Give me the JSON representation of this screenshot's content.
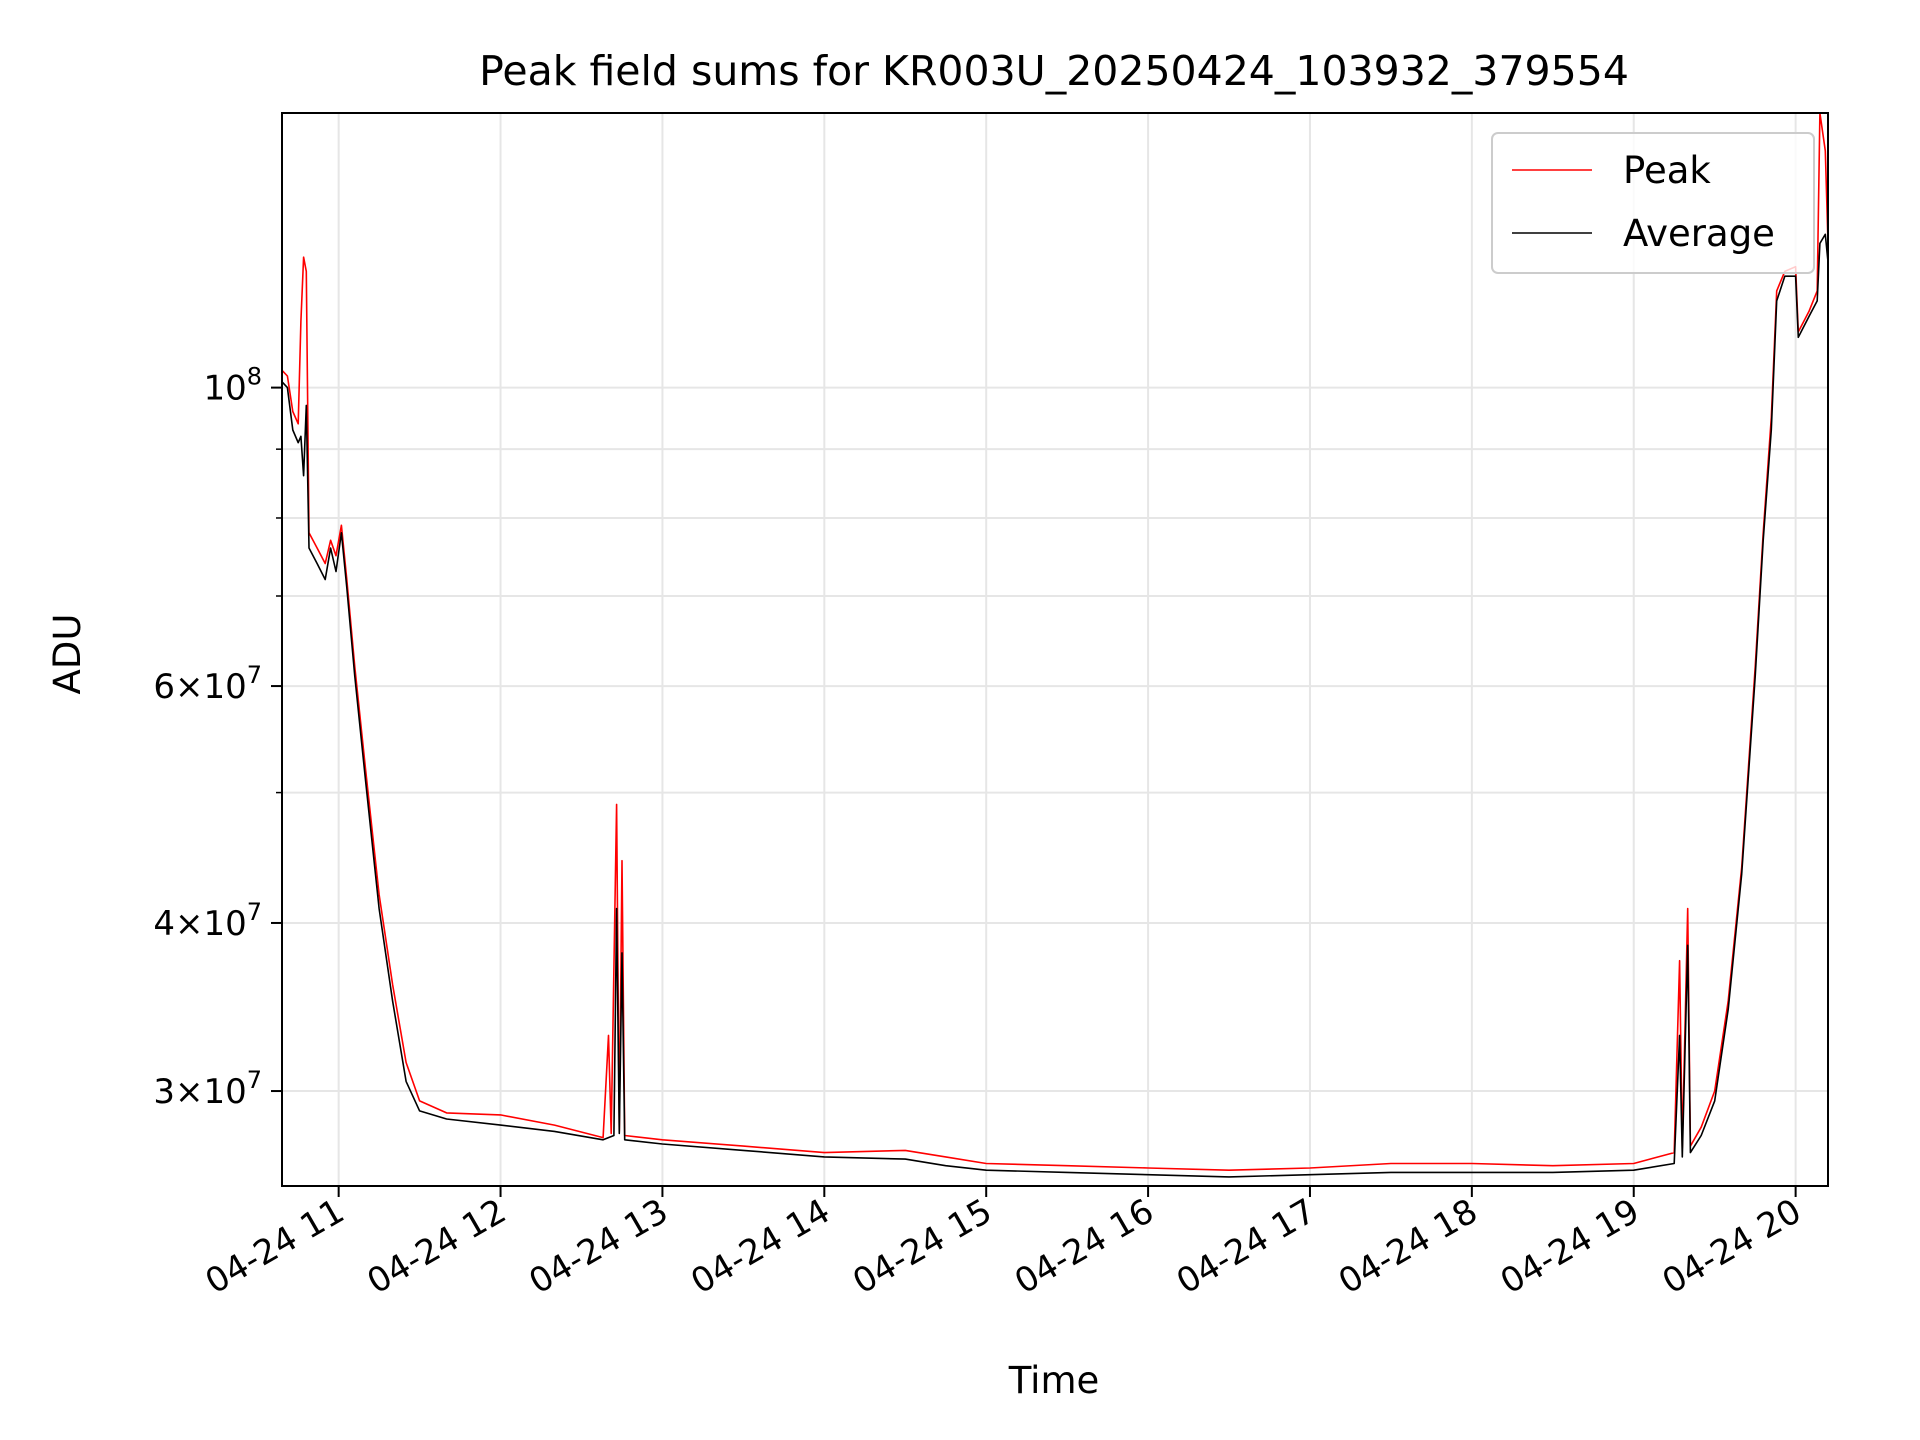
{
  "chart_data": {
    "type": "line",
    "title": "Peak field sums for KR003U_20250424_103932_379554",
    "xlabel": "Time",
    "ylabel": "ADU",
    "yscale": "log",
    "grid": true,
    "legend_placement": "top-right",
    "xlim": [
      "2025-04-24 10:39",
      "2025-04-24 20:12"
    ],
    "ylim": [
      25500000,
      160000000
    ],
    "x_ticks": [
      {
        "time": "2025-04-24 11:00",
        "label": "04-24 11"
      },
      {
        "time": "2025-04-24 12:00",
        "label": "04-24 12"
      },
      {
        "time": "2025-04-24 13:00",
        "label": "04-24 13"
      },
      {
        "time": "2025-04-24 14:00",
        "label": "04-24 14"
      },
      {
        "time": "2025-04-24 15:00",
        "label": "04-24 15"
      },
      {
        "time": "2025-04-24 16:00",
        "label": "04-24 16"
      },
      {
        "time": "2025-04-24 17:00",
        "label": "04-24 17"
      },
      {
        "time": "2025-04-24 18:00",
        "label": "04-24 18"
      },
      {
        "time": "2025-04-24 19:00",
        "label": "04-24 19"
      },
      {
        "time": "2025-04-24 20:00",
        "label": "04-24 20"
      }
    ],
    "y_ticks": [
      {
        "value": 100000000,
        "base": "10",
        "exp": "8"
      },
      {
        "value": 60000000,
        "mant": "6",
        "base": "10",
        "exp": "7"
      },
      {
        "value": 40000000,
        "mant": "4",
        "base": "10",
        "exp": "7"
      },
      {
        "value": 30000000,
        "mant": "3",
        "base": "10",
        "exp": "7"
      }
    ],
    "y_minor_grid": [
      20000000,
      50000000,
      70000000,
      80000000,
      90000000
    ],
    "series": [
      {
        "name": "Peak",
        "color": "#ff0000",
        "points": [
          [
            "2025-04-24 10:39",
            103000000
          ],
          [
            "2025-04-24 10:41",
            102000000
          ],
          [
            "2025-04-24 10:43",
            96000000
          ],
          [
            "2025-04-24 10:45",
            94000000
          ],
          [
            "2025-04-24 10:46",
            112000000
          ],
          [
            "2025-04-24 10:47",
            125000000
          ],
          [
            "2025-04-24 10:48",
            122000000
          ],
          [
            "2025-04-24 10:49",
            78000000
          ],
          [
            "2025-04-24 10:52",
            76000000
          ],
          [
            "2025-04-24 10:55",
            74000000
          ],
          [
            "2025-04-24 10:57",
            77000000
          ],
          [
            "2025-04-24 10:59",
            75000000
          ],
          [
            "2025-04-24 11:01",
            79000000
          ],
          [
            "2025-04-24 11:03",
            72000000
          ],
          [
            "2025-04-24 11:06",
            62000000
          ],
          [
            "2025-04-24 11:10",
            52000000
          ],
          [
            "2025-04-24 11:15",
            42000000
          ],
          [
            "2025-04-24 11:20",
            36000000
          ],
          [
            "2025-04-24 11:25",
            31500000
          ],
          [
            "2025-04-24 11:30",
            29500000
          ],
          [
            "2025-04-24 11:40",
            28900000
          ],
          [
            "2025-04-24 12:00",
            28800000
          ],
          [
            "2025-04-24 12:20",
            28300000
          ],
          [
            "2025-04-24 12:38",
            27700000
          ],
          [
            "2025-04-24 12:40",
            33000000
          ],
          [
            "2025-04-24 12:41",
            27900000
          ],
          [
            "2025-04-24 12:43",
            49000000
          ],
          [
            "2025-04-24 12:44",
            28000000
          ],
          [
            "2025-04-24 12:45",
            44500000
          ],
          [
            "2025-04-24 12:46",
            27800000
          ],
          [
            "2025-04-24 13:00",
            27600000
          ],
          [
            "2025-04-24 13:30",
            27300000
          ],
          [
            "2025-04-24 14:00",
            27000000
          ],
          [
            "2025-04-24 14:30",
            27100000
          ],
          [
            "2025-04-24 14:45",
            26800000
          ],
          [
            "2025-04-24 15:00",
            26500000
          ],
          [
            "2025-04-24 15:30",
            26400000
          ],
          [
            "2025-04-24 16:00",
            26300000
          ],
          [
            "2025-04-24 16:30",
            26200000
          ],
          [
            "2025-04-24 17:00",
            26300000
          ],
          [
            "2025-04-24 17:30",
            26500000
          ],
          [
            "2025-04-24 18:00",
            26500000
          ],
          [
            "2025-04-24 18:30",
            26400000
          ],
          [
            "2025-04-24 19:00",
            26500000
          ],
          [
            "2025-04-24 19:15",
            27000000
          ],
          [
            "2025-04-24 19:17",
            37500000
          ],
          [
            "2025-04-24 19:18",
            27200000
          ],
          [
            "2025-04-24 19:20",
            41000000
          ],
          [
            "2025-04-24 19:21",
            27300000
          ],
          [
            "2025-04-24 19:25",
            28200000
          ],
          [
            "2025-04-24 19:30",
            30000000
          ],
          [
            "2025-04-24 19:35",
            35000000
          ],
          [
            "2025-04-24 19:40",
            44000000
          ],
          [
            "2025-04-24 19:45",
            62000000
          ],
          [
            "2025-04-24 19:48",
            78000000
          ],
          [
            "2025-04-24 19:51",
            95000000
          ],
          [
            "2025-04-24 19:53",
            118000000
          ],
          [
            "2025-04-24 19:56",
            122000000
          ],
          [
            "2025-04-24 20:00",
            123000000
          ],
          [
            "2025-04-24 20:01",
            110000000
          ],
          [
            "2025-04-24 20:05",
            114000000
          ],
          [
            "2025-04-24 20:08",
            118000000
          ],
          [
            "2025-04-24 20:09",
            160000000
          ],
          [
            "2025-04-24 20:11",
            150000000
          ],
          [
            "2025-04-24 20:12",
            128000000
          ]
        ]
      },
      {
        "name": "Average",
        "color": "#000000",
        "points": [
          [
            "2025-04-24 10:39",
            101000000
          ],
          [
            "2025-04-24 10:41",
            100000000
          ],
          [
            "2025-04-24 10:43",
            93000000
          ],
          [
            "2025-04-24 10:45",
            91000000
          ],
          [
            "2025-04-24 10:46",
            92000000
          ],
          [
            "2025-04-24 10:47",
            86000000
          ],
          [
            "2025-04-24 10:48",
            97000000
          ],
          [
            "2025-04-24 10:49",
            76000000
          ],
          [
            "2025-04-24 10:52",
            74000000
          ],
          [
            "2025-04-24 10:55",
            72000000
          ],
          [
            "2025-04-24 10:57",
            76000000
          ],
          [
            "2025-04-24 10:59",
            73000000
          ],
          [
            "2025-04-24 11:01",
            78000000
          ],
          [
            "2025-04-24 11:03",
            71000000
          ],
          [
            "2025-04-24 11:06",
            61000000
          ],
          [
            "2025-04-24 11:10",
            51000000
          ],
          [
            "2025-04-24 11:15",
            41000000
          ],
          [
            "2025-04-24 11:20",
            35000000
          ],
          [
            "2025-04-24 11:25",
            30500000
          ],
          [
            "2025-04-24 11:30",
            29000000
          ],
          [
            "2025-04-24 11:40",
            28600000
          ],
          [
            "2025-04-24 12:00",
            28300000
          ],
          [
            "2025-04-24 12:20",
            28000000
          ],
          [
            "2025-04-24 12:38",
            27600000
          ],
          [
            "2025-04-24 12:40",
            27700000
          ],
          [
            "2025-04-24 12:42",
            27800000
          ],
          [
            "2025-04-24 12:43",
            41000000
          ],
          [
            "2025-04-24 12:44",
            27900000
          ],
          [
            "2025-04-24 12:45",
            38000000
          ],
          [
            "2025-04-24 12:46",
            27600000
          ],
          [
            "2025-04-24 13:00",
            27400000
          ],
          [
            "2025-04-24 13:30",
            27100000
          ],
          [
            "2025-04-24 14:00",
            26800000
          ],
          [
            "2025-04-24 14:30",
            26700000
          ],
          [
            "2025-04-24 14:45",
            26400000
          ],
          [
            "2025-04-24 15:00",
            26200000
          ],
          [
            "2025-04-24 15:30",
            26100000
          ],
          [
            "2025-04-24 16:00",
            26000000
          ],
          [
            "2025-04-24 16:30",
            25900000
          ],
          [
            "2025-04-24 17:00",
            26000000
          ],
          [
            "2025-04-24 17:30",
            26100000
          ],
          [
            "2025-04-24 18:00",
            26100000
          ],
          [
            "2025-04-24 18:30",
            26100000
          ],
          [
            "2025-04-24 19:00",
            26200000
          ],
          [
            "2025-04-24 19:15",
            26500000
          ],
          [
            "2025-04-24 19:17",
            33000000
          ],
          [
            "2025-04-24 19:18",
            26800000
          ],
          [
            "2025-04-24 19:20",
            38500000
          ],
          [
            "2025-04-24 19:21",
            27000000
          ],
          [
            "2025-04-24 19:25",
            27800000
          ],
          [
            "2025-04-24 19:30",
            29500000
          ],
          [
            "2025-04-24 19:35",
            34500000
          ],
          [
            "2025-04-24 19:40",
            43500000
          ],
          [
            "2025-04-24 19:45",
            61000000
          ],
          [
            "2025-04-24 19:48",
            77000000
          ],
          [
            "2025-04-24 19:51",
            93000000
          ],
          [
            "2025-04-24 19:53",
            116000000
          ],
          [
            "2025-04-24 19:56",
            121000000
          ],
          [
            "2025-04-24 20:00",
            121000000
          ],
          [
            "2025-04-24 20:01",
            109000000
          ],
          [
            "2025-04-24 20:05",
            113000000
          ],
          [
            "2025-04-24 20:08",
            116000000
          ],
          [
            "2025-04-24 20:09",
            128000000
          ],
          [
            "2025-04-24 20:11",
            130000000
          ],
          [
            "2025-04-24 20:12",
            124000000
          ]
        ]
      }
    ]
  }
}
